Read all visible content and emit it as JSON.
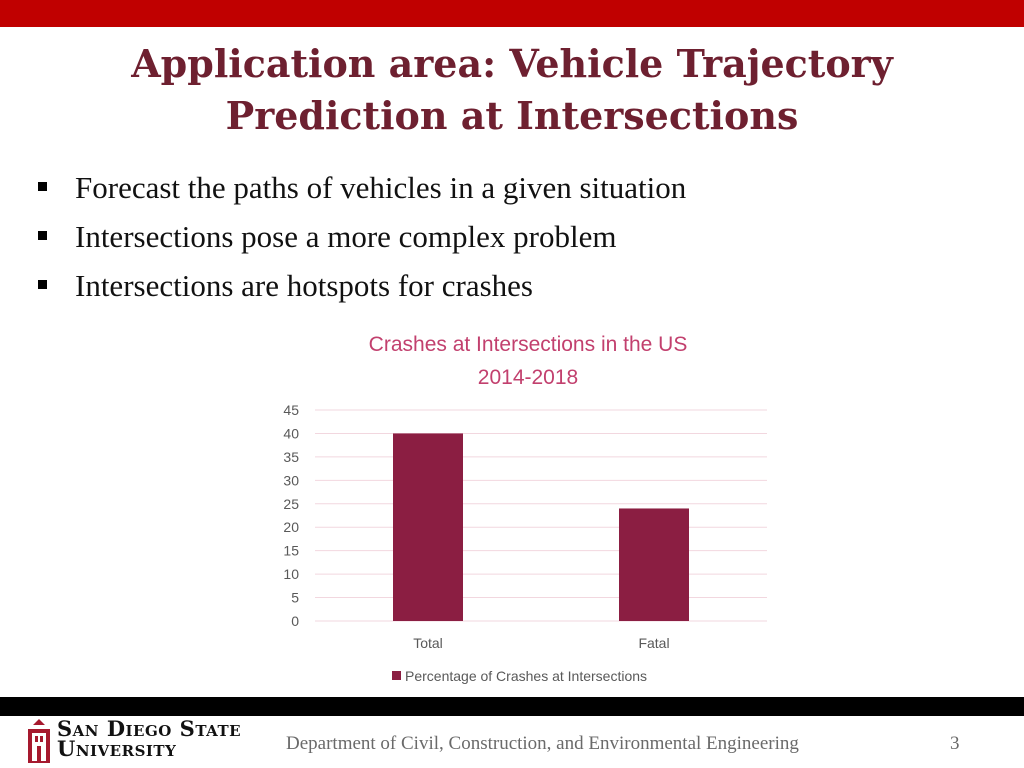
{
  "slide": {
    "title_line1": "Application area: Vehicle Trajectory",
    "title_line2": "Prediction at Intersections",
    "bullets": [
      "Forecast the paths of vehicles in a given situation",
      "Intersections pose a more complex problem",
      "Intersections are hotspots for crashes"
    ]
  },
  "chart_data": {
    "type": "bar",
    "title": "Crashes at Intersections in the US",
    "subtitle": "2014-2018",
    "categories": [
      "Total",
      "Fatal"
    ],
    "series": [
      {
        "name": "Percentage of Crashes at Intersections",
        "values": [
          40,
          24
        ]
      }
    ],
    "ylim": [
      0,
      45
    ],
    "yticks": [
      0,
      5,
      10,
      15,
      20,
      25,
      30,
      35,
      40,
      45
    ],
    "grid": true,
    "legend": "bottom",
    "colors": {
      "bar": "#8b1e42",
      "title": "#c2406e",
      "grid": "#f2d7df",
      "tick": "#595959"
    }
  },
  "footer": {
    "logo_line1": "San Diego State",
    "logo_line2": "University",
    "department": "Department of Civil, Construction, and Environmental Engineering",
    "page_number": "3"
  },
  "colors": {
    "top_bar": "#c00000",
    "title": "#6e2030",
    "bottom_bar": "#000000"
  }
}
